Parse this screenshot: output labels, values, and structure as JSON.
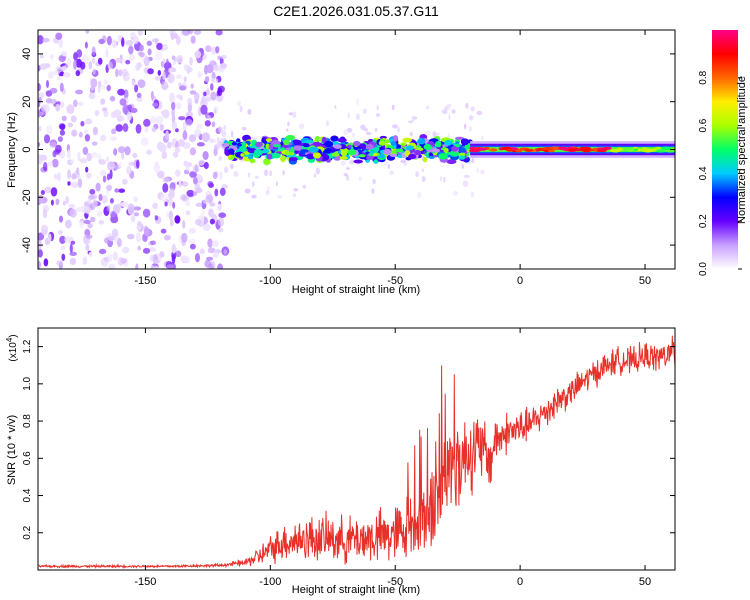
{
  "figure_title": "C2E1.2026.031.05.37.G11",
  "chart_data": [
    {
      "type": "heatmap",
      "title": "C2E1.2026.031.05.37.G11",
      "xlabel": "Height of straight line (km)",
      "ylabel": "Frequency (Hz)",
      "xlim": [
        -193,
        62
      ],
      "ylim": [
        -50,
        50
      ],
      "xticks": [
        -150,
        -100,
        -50,
        0,
        50
      ],
      "yticks": [
        -40,
        -20,
        0,
        20,
        40
      ],
      "regions": [
        {
          "name": "noise",
          "x_range": [
            -193,
            -118
          ],
          "y_range": [
            -50,
            50
          ],
          "amplitude": 0.1
        },
        {
          "name": "signal-band-turbulent",
          "x_range": [
            -118,
            -20
          ],
          "y_center": 0,
          "half_width": 4,
          "amplitude": 0.35
        },
        {
          "name": "signal-band-stable",
          "x_range": [
            -20,
            62
          ],
          "y_center": 0,
          "half_width": 2,
          "amplitude": 0.9
        }
      ],
      "colorbar": {
        "label": "Normalized spectral amplitude",
        "range": [
          0.0,
          1.0
        ],
        "ticks": [
          0.0,
          0.2,
          0.4,
          0.6,
          0.8
        ],
        "tick_labels": [
          "0.0",
          "0.2",
          "0.4",
          "0.6",
          "0.8"
        ],
        "colors": [
          "#ffffff",
          "#c8a0ff",
          "#6600ff",
          "#0000ff",
          "#00ccff",
          "#00ff66",
          "#aaff00",
          "#ffee00",
          "#ff6600",
          "#ff0000",
          "#ff0088"
        ]
      }
    },
    {
      "type": "line",
      "xlabel": "Height of straight line (km)",
      "ylabel": "SNR (10 * v/v)",
      "y_multiplier": "(x10",
      "y_multiplier_exp": "4",
      "y_multiplier_close": ")",
      "xlim": [
        -193,
        62
      ],
      "ylim": [
        0,
        1.3
      ],
      "xticks": [
        -150,
        -100,
        -50,
        0,
        50
      ],
      "yticks": [
        0.2,
        0.4,
        0.6,
        0.8,
        1.0,
        1.2
      ],
      "ytick_labels": [
        "0.2",
        "0.4",
        "0.6",
        "0.8",
        "1.0",
        "1.2"
      ],
      "series": [
        {
          "name": "SNR",
          "color": "#e8302a",
          "x": [
            -193,
            -180,
            -160,
            -140,
            -120,
            -110,
            -105,
            -100,
            -95,
            -90,
            -85,
            -80,
            -75,
            -70,
            -65,
            -60,
            -55,
            -50,
            -45,
            -40,
            -35,
            -33,
            -30,
            -25,
            -20,
            -15,
            -12,
            -10,
            -5,
            0,
            5,
            10,
            15,
            20,
            25,
            30,
            35,
            40,
            45,
            50,
            55,
            60,
            62
          ],
          "mean": [
            0.02,
            0.02,
            0.02,
            0.02,
            0.025,
            0.04,
            0.07,
            0.11,
            0.15,
            0.16,
            0.17,
            0.17,
            0.17,
            0.16,
            0.17,
            0.17,
            0.18,
            0.19,
            0.23,
            0.27,
            0.32,
            0.4,
            0.52,
            0.58,
            0.64,
            0.65,
            0.58,
            0.7,
            0.74,
            0.76,
            0.79,
            0.85,
            0.91,
            0.95,
            1.01,
            1.06,
            1.1,
            1.13,
            1.12,
            1.15,
            1.14,
            1.16,
            1.17
          ],
          "noise": [
            0.005,
            0.005,
            0.005,
            0.005,
            0.006,
            0.015,
            0.04,
            0.06,
            0.08,
            0.09,
            0.1,
            0.1,
            0.1,
            0.1,
            0.1,
            0.11,
            0.12,
            0.13,
            0.15,
            0.18,
            0.2,
            0.22,
            0.22,
            0.2,
            0.18,
            0.15,
            0.12,
            0.1,
            0.09,
            0.08,
            0.07,
            0.07,
            0.07,
            0.06,
            0.06,
            0.06,
            0.06,
            0.06,
            0.06,
            0.06,
            0.06,
            0.07,
            0.07
          ]
        }
      ]
    }
  ]
}
